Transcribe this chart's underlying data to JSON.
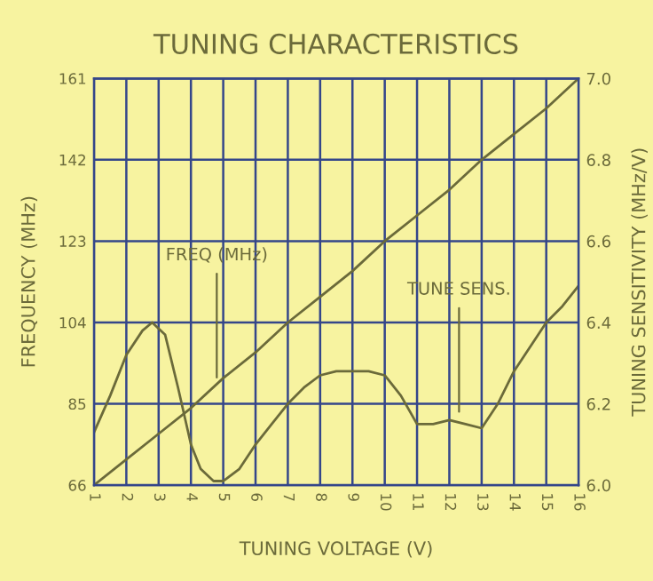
{
  "chart_data": {
    "type": "line",
    "title": "TUNING CHARACTERISTICS",
    "xlabel": "TUNING VOLTAGE (V)",
    "ylabel": "FREQUENCY (MHz)",
    "y2label": "TUNING SENSITIVITY (MHz/V)",
    "xlim": [
      1,
      16
    ],
    "xticks": [
      1,
      2,
      3,
      4,
      5,
      6,
      7,
      8,
      9,
      10,
      11,
      12,
      13,
      14,
      15,
      16
    ],
    "ylim": [
      66,
      161
    ],
    "yticks": [
      66,
      85,
      104,
      123,
      142,
      161
    ],
    "y2lim": [
      6.0,
      7.0
    ],
    "y2ticks": [
      {
        "value": 6.0,
        "label": "6.0"
      },
      6.2,
      6.4,
      6.6,
      6.8,
      {
        "value": 7.0,
        "label": "7.0"
      }
    ],
    "grid": true,
    "legend": false,
    "marker": "none",
    "line_style": "solid",
    "series": [
      {
        "color": "#6b6a3a",
        "x": [
          1,
          2,
          3,
          4,
          5,
          6,
          7,
          8,
          9,
          10,
          11,
          12,
          13,
          14,
          15,
          16
        ],
        "values": [
          66,
          72,
          78,
          84,
          91,
          97,
          104,
          110,
          116,
          123,
          129,
          135,
          142,
          148,
          154,
          161
        ]
      },
      {
        "color": "#6b6a3a",
        "axis": "y2",
        "x": [
          1,
          1.5,
          2,
          2.5,
          2.8,
          3.2,
          3.6,
          4,
          4.3,
          4.7,
          5,
          5.5,
          6,
          6.5,
          7,
          7.5,
          8,
          8.5,
          9,
          9.5,
          10,
          10.5,
          11,
          11.5,
          12,
          12.5,
          13,
          13.5,
          14,
          14.5,
          15,
          15.5,
          16
        ],
        "values": [
          6.13,
          6.22,
          6.32,
          6.38,
          6.4,
          6.37,
          6.24,
          6.1,
          6.04,
          6.01,
          6.01,
          6.04,
          6.1,
          6.15,
          6.2,
          6.24,
          6.27,
          6.28,
          6.28,
          6.28,
          6.27,
          6.22,
          6.15,
          6.15,
          6.16,
          6.15,
          6.14,
          6.2,
          6.28,
          6.34,
          6.4,
          6.44,
          6.49
        ]
      }
    ],
    "annotations": [
      {
        "text": "FREQ (MHz)",
        "x": 4.8,
        "y": 90
      },
      {
        "text": "TUNE SENS.",
        "x": 12.3,
        "y": 82
      }
    ]
  }
}
